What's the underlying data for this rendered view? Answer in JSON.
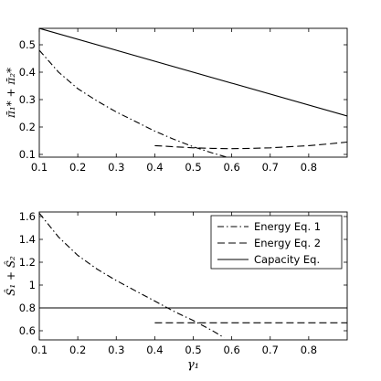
{
  "chart_data": [
    {
      "type": "line",
      "ylabel": "π̄₁* + π̄₂*",
      "xlabel": "",
      "xlim": [
        0.1,
        0.9
      ],
      "ylim": [
        0.09,
        0.56
      ],
      "xticks": [
        "0.1",
        "0.2",
        "0.3",
        "0.4",
        "0.5",
        "0.6",
        "0.7",
        "0.8"
      ],
      "yticks": [
        "0.1",
        "0.2",
        "0.3",
        "0.4",
        "0.5"
      ],
      "legend": null,
      "series": [
        {
          "style": "dashdot",
          "x": [
            0.1,
            0.15,
            0.2,
            0.25,
            0.3,
            0.35,
            0.4,
            0.45,
            0.5,
            0.55,
            0.6
          ],
          "y": [
            0.48,
            0.4,
            0.34,
            0.295,
            0.255,
            0.22,
            0.185,
            0.155,
            0.128,
            0.105,
            0.085
          ]
        },
        {
          "style": "dashed",
          "x": [
            0.4,
            0.45,
            0.5,
            0.55,
            0.6,
            0.65,
            0.7,
            0.75,
            0.8,
            0.85,
            0.9
          ],
          "y": [
            0.132,
            0.128,
            0.124,
            0.122,
            0.121,
            0.122,
            0.124,
            0.128,
            0.132,
            0.138,
            0.145
          ]
        },
        {
          "style": "solid",
          "x": [
            0.1,
            0.9
          ],
          "y": [
            0.56,
            0.24
          ]
        }
      ]
    },
    {
      "type": "line",
      "ylabel": "Ŝ₁ + Ŝ₂",
      "xlabel": "γ₁",
      "xlim": [
        0.1,
        0.9
      ],
      "ylim": [
        0.52,
        1.64
      ],
      "xticks": [
        "0.1",
        "0.2",
        "0.3",
        "0.4",
        "0.5",
        "0.6",
        "0.7",
        "0.8"
      ],
      "yticks": [
        "0.6",
        "0.8",
        "1",
        "1.2",
        "1.4",
        "1.6"
      ],
      "legend": {
        "position": "top-right",
        "entries": [
          {
            "label": "Energy Eq. 1",
            "style": "dashdot"
          },
          {
            "label": "Energy Eq. 2",
            "style": "dashed"
          },
          {
            "label": "Capacity Eq.",
            "style": "solid"
          }
        ]
      },
      "series": [
        {
          "style": "dashdot",
          "x": [
            0.1,
            0.15,
            0.2,
            0.25,
            0.3,
            0.35,
            0.4,
            0.45,
            0.5,
            0.55,
            0.58
          ],
          "y": [
            1.63,
            1.42,
            1.26,
            1.14,
            1.04,
            0.95,
            0.86,
            0.77,
            0.69,
            0.6,
            0.54
          ]
        },
        {
          "style": "dashed",
          "x": [
            0.4,
            0.9
          ],
          "y": [
            0.67,
            0.67
          ]
        },
        {
          "style": "solid",
          "x": [
            0.1,
            0.9
          ],
          "y": [
            0.8,
            0.8
          ]
        }
      ]
    }
  ]
}
